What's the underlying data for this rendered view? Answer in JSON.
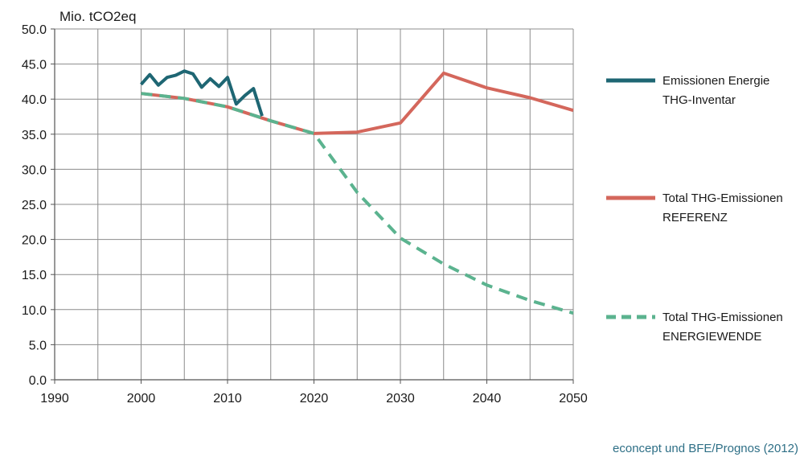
{
  "chart_data": {
    "type": "line",
    "ylabel": "Mio. tCO2eq",
    "xlim": [
      1990,
      2050
    ],
    "ylim": [
      0,
      50
    ],
    "x_ticks": [
      "1990",
      "2000",
      "2010",
      "2020",
      "2030",
      "2040",
      "2050"
    ],
    "y_ticks": [
      "0.0",
      "5.0",
      "10.0",
      "15.0",
      "20.0",
      "25.0",
      "30.0",
      "35.0",
      "40.0",
      "45.0",
      "50.0"
    ],
    "grid": true,
    "legend_position": "right",
    "series": [
      {
        "name_lines": [
          "Emissionen Energie",
          "THG-Inventar"
        ],
        "color": "#1e6673",
        "style": "solid",
        "points": [
          [
            2000,
            42.1
          ],
          [
            2001,
            43.5
          ],
          [
            2002,
            42.0
          ],
          [
            2003,
            43.1
          ],
          [
            2004,
            43.4
          ],
          [
            2005,
            44.0
          ],
          [
            2006,
            43.6
          ],
          [
            2007,
            41.7
          ],
          [
            2008,
            42.9
          ],
          [
            2009,
            41.8
          ],
          [
            2010,
            43.1
          ],
          [
            2011,
            39.3
          ],
          [
            2012,
            40.5
          ],
          [
            2013,
            41.5
          ],
          [
            2014,
            37.6
          ]
        ]
      },
      {
        "name_lines": [
          "Total THG-Emissionen",
          "REFERENZ"
        ],
        "color": "#d4675c",
        "style": "solid",
        "points": [
          [
            2000,
            40.8
          ],
          [
            2005,
            40.1
          ],
          [
            2010,
            38.9
          ],
          [
            2015,
            36.9
          ],
          [
            2020,
            35.1
          ],
          [
            2025,
            35.3
          ],
          [
            2030,
            36.6
          ],
          [
            2035,
            43.7
          ],
          [
            2040,
            41.6
          ],
          [
            2045,
            40.2
          ],
          [
            2050,
            38.4
          ]
        ]
      },
      {
        "name_lines": [
          "Total THG-Emissionen",
          "ENERGIEWENDE"
        ],
        "color": "#5bb38f",
        "style": "dashed",
        "points": [
          [
            2000,
            40.8
          ],
          [
            2005,
            40.1
          ],
          [
            2010,
            38.9
          ],
          [
            2015,
            36.9
          ],
          [
            2020,
            35.1
          ],
          [
            2025,
            26.7
          ],
          [
            2030,
            20.2
          ],
          [
            2035,
            16.5
          ],
          [
            2040,
            13.5
          ],
          [
            2045,
            11.3
          ],
          [
            2050,
            9.5
          ]
        ]
      }
    ],
    "source_note": "econcept und BFE/Prognos (2012)"
  }
}
